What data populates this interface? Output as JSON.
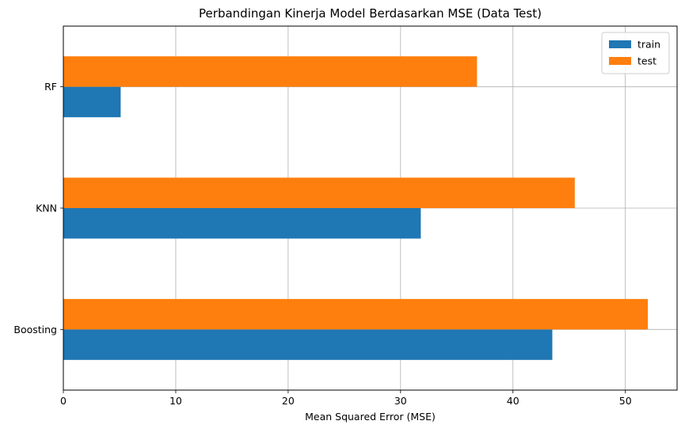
{
  "chart_data": {
    "type": "bar",
    "orientation": "horizontal",
    "title": "Perbandingan Kinerja Model Berdasarkan MSE (Data Test)",
    "xlabel": "Mean Squared Error (MSE)",
    "ylabel": "",
    "categories": [
      "RF",
      "KNN",
      "Boosting"
    ],
    "series": [
      {
        "name": "train",
        "color": "#1f77b4",
        "values": [
          5.1,
          31.8,
          43.5
        ]
      },
      {
        "name": "test",
        "color": "#ff7f0e",
        "values": [
          36.8,
          45.5,
          52.0
        ]
      }
    ],
    "xlim": [
      0,
      54.6
    ],
    "xticks": [
      0,
      10,
      20,
      30,
      40,
      50
    ],
    "grid": true,
    "legend": "top-right"
  }
}
